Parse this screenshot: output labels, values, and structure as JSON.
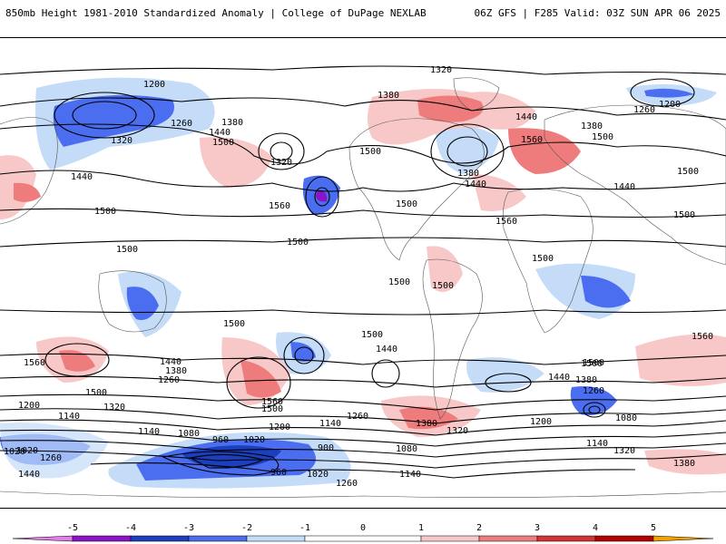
{
  "header": {
    "left": "850mb Height 1981-2010 Standardized Anomaly | College of DuPage NEXLAB",
    "right": "06Z GFS | F285 Valid: 03Z SUN APR 06 2025"
  },
  "colors": {
    "neg5": "#e27ee9",
    "neg4": "#8a12c9",
    "neg3": "#1b3fbf",
    "neg2": "#4b6ef0",
    "neg1": "#c4dcf8",
    "zero": "#ffffff",
    "pos1": "#f8c8c8",
    "pos2": "#ee7c7c",
    "pos3": "#d23434",
    "pos4": "#b30000",
    "pos5": "#f2a100"
  },
  "colorbar": {
    "ticks": [
      "-5",
      "-4",
      "-3",
      "-2",
      "-1",
      "0",
      "1",
      "2",
      "3",
      "4",
      "5"
    ]
  },
  "contour_labels": [
    "1200",
    "1320",
    "1380",
    "1260",
    "1320",
    "1440",
    "1500",
    "1320",
    "1380",
    "1440",
    "1500",
    "1560",
    "1200",
    "1260",
    "1380",
    "1440",
    "1500",
    "1380",
    "1440",
    "1560",
    "1500",
    "1500",
    "1560",
    "1440",
    "1500",
    "1500",
    "1500",
    "1500",
    "1500",
    "1500",
    "1500",
    "1500",
    "1500",
    "1440",
    "1500",
    "1560",
    "1560",
    "1440",
    "1380",
    "1260",
    "1500",
    "1320",
    "1560",
    "1500",
    "1200",
    "1140",
    "1200",
    "1140",
    "1080",
    "1260",
    "1380",
    "1320",
    "1200",
    "1140",
    "1260",
    "1380",
    "1440",
    "1500",
    "1080",
    "1020",
    "1260",
    "960",
    "1020",
    "900",
    "1080",
    "960",
    "1020",
    "1140",
    "1260",
    "1020",
    "1440",
    "1140",
    "1320",
    "1380"
  ]
}
